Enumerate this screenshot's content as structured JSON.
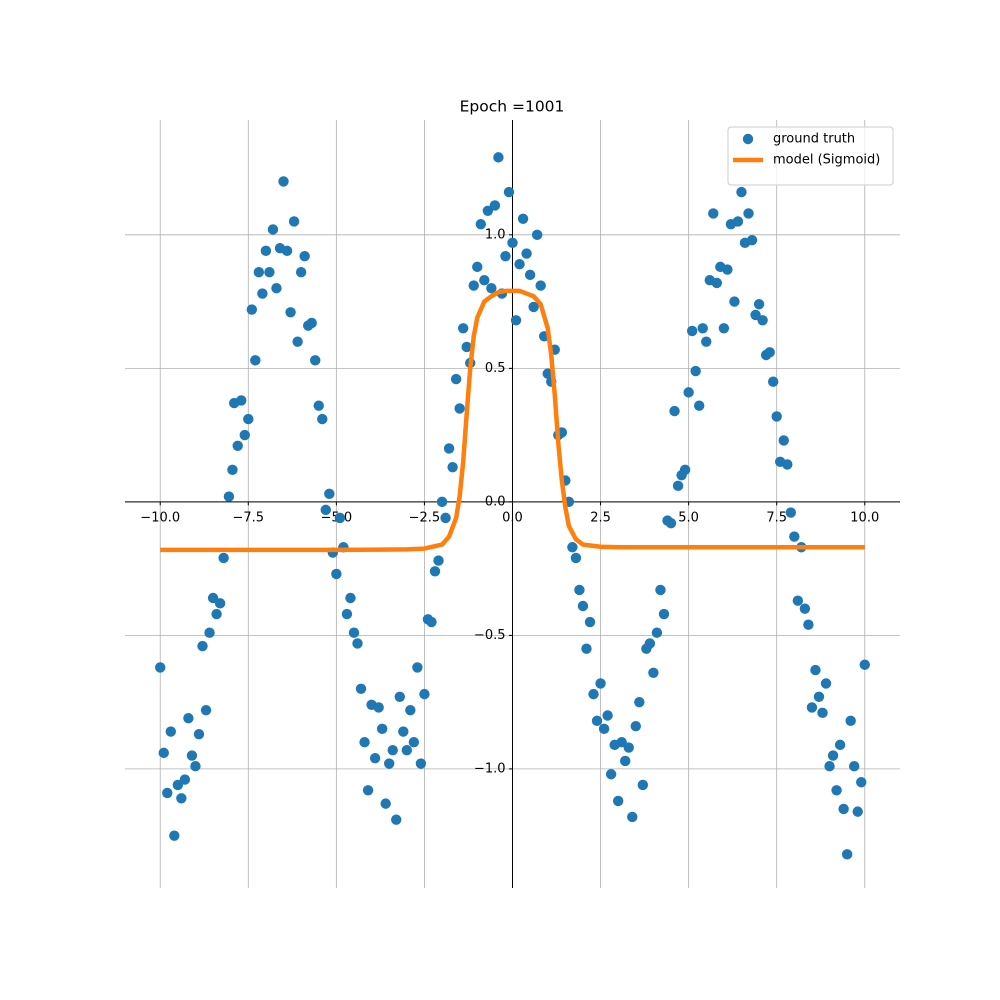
{
  "chart_data": {
    "type": "scatter",
    "title": "Epoch =1001",
    "xlim": [
      -11,
      11
    ],
    "ylim": [
      -1.446,
      1.43
    ],
    "xticks": [
      {
        "value": -10,
        "label": "−10.0"
      },
      {
        "value": -7.5,
        "label": "−7.5"
      },
      {
        "value": -5,
        "label": "−5.0"
      },
      {
        "value": -2.5,
        "label": "−2.5"
      },
      {
        "value": 0,
        "label": "0.0"
      },
      {
        "value": 2.5,
        "label": "2.5"
      },
      {
        "value": 5,
        "label": "5.0"
      },
      {
        "value": 7.5,
        "label": "7.5"
      },
      {
        "value": 10,
        "label": "10.0"
      }
    ],
    "yticks": [
      {
        "value": -1,
        "label": "−1.0"
      },
      {
        "value": -0.5,
        "label": "−0.5"
      },
      {
        "value": 0,
        "label": "0.0"
      },
      {
        "value": 0.5,
        "label": "0.5"
      },
      {
        "value": 1,
        "label": "1.0"
      }
    ],
    "grid": true,
    "legend": "upper right",
    "series": [
      {
        "name": "ground truth",
        "type": "scatter",
        "color": "#1f77b4",
        "x": [
          -10.0,
          -9.9,
          -9.8,
          -9.7,
          -9.6,
          -9.5,
          -9.4,
          -9.3,
          -9.2,
          -9.1,
          -9.0,
          -8.9,
          -8.8,
          -8.7,
          -8.6,
          -8.5,
          -8.4,
          -8.3,
          -8.2,
          -8.05,
          -7.95,
          -7.9,
          -7.8,
          -7.7,
          -7.6,
          -7.5,
          -7.4,
          -7.3,
          -7.2,
          -7.1,
          -7.0,
          -6.9,
          -6.8,
          -6.7,
          -6.6,
          -6.5,
          -6.4,
          -6.3,
          -6.2,
          -6.1,
          -6.0,
          -5.9,
          -5.8,
          -5.7,
          -5.6,
          -5.5,
          -5.4,
          -5.3,
          -5.2,
          -5.1,
          -5.0,
          -4.9,
          -4.8,
          -4.7,
          -4.6,
          -4.5,
          -4.4,
          -4.3,
          -4.2,
          -4.1,
          -4.0,
          -3.9,
          -3.8,
          -3.7,
          -3.6,
          -3.5,
          -3.4,
          -3.3,
          -3.2,
          -3.1,
          -3.0,
          -2.9,
          -2.8,
          -2.7,
          -2.6,
          -2.5,
          -2.4,
          -2.3,
          -2.2,
          -2.1,
          -2.0,
          -1.9,
          -1.8,
          -1.7,
          -1.6,
          -1.5,
          -1.4,
          -1.3,
          -1.2,
          -1.1,
          -1.0,
          -0.9,
          -0.8,
          -0.7,
          -0.6,
          -0.5,
          -0.4,
          -0.3,
          -0.2,
          -0.1,
          0.0,
          0.1,
          0.2,
          0.3,
          0.4,
          0.5,
          0.6,
          0.7,
          0.8,
          0.9,
          1.0,
          1.1,
          1.2,
          1.3,
          1.4,
          1.5,
          1.6,
          1.7,
          1.8,
          1.9,
          2.0,
          2.1,
          2.2,
          2.3,
          2.4,
          2.5,
          2.6,
          2.7,
          2.8,
          2.9,
          3.0,
          3.1,
          3.2,
          3.3,
          3.4,
          3.5,
          3.6,
          3.7,
          3.8,
          3.9,
          4.0,
          4.1,
          4.2,
          4.3,
          4.4,
          4.5,
          4.6,
          4.7,
          4.8,
          4.9,
          5.0,
          5.1,
          5.2,
          5.3,
          5.4,
          5.5,
          5.6,
          5.7,
          5.8,
          5.9,
          6.0,
          6.1,
          6.2,
          6.3,
          6.4,
          6.5,
          6.6,
          6.7,
          6.8,
          6.9,
          7.0,
          7.1,
          7.2,
          7.3,
          7.4,
          7.5,
          7.6,
          7.7,
          7.8,
          7.9,
          8.0,
          8.1,
          8.2,
          8.3,
          8.4,
          8.5,
          8.6,
          8.7,
          8.8,
          8.9,
          9.0,
          9.1,
          9.2,
          9.3,
          9.4,
          9.5,
          9.6,
          9.7,
          9.8,
          9.9,
          10.0
        ],
        "values": [
          -0.62,
          -0.94,
          -1.09,
          -0.86,
          -1.25,
          -1.06,
          -1.11,
          -1.04,
          -0.81,
          -0.95,
          -0.99,
          -0.87,
          -0.54,
          -0.78,
          -0.49,
          -0.36,
          -0.42,
          -0.38,
          -0.21,
          0.02,
          0.12,
          0.37,
          0.21,
          0.38,
          0.25,
          0.31,
          0.72,
          0.53,
          0.86,
          0.78,
          0.94,
          0.86,
          1.02,
          0.8,
          0.95,
          1.2,
          0.94,
          0.71,
          1.05,
          0.6,
          0.86,
          0.92,
          0.66,
          0.67,
          0.53,
          0.36,
          0.31,
          -0.03,
          0.03,
          -0.19,
          -0.27,
          -0.06,
          -0.17,
          -0.42,
          -0.36,
          -0.49,
          -0.53,
          -0.7,
          -0.9,
          -1.08,
          -0.76,
          -0.96,
          -0.77,
          -0.85,
          -1.13,
          -0.98,
          -0.93,
          -1.19,
          -0.73,
          -0.86,
          -0.93,
          -0.78,
          -0.9,
          -0.62,
          -0.98,
          -0.72,
          -0.44,
          -0.45,
          -0.26,
          -0.22,
          0.0,
          -0.06,
          0.2,
          0.13,
          0.46,
          0.35,
          0.65,
          0.58,
          0.52,
          0.81,
          0.88,
          1.04,
          0.83,
          1.09,
          0.8,
          1.11,
          1.29,
          0.78,
          0.92,
          1.16,
          0.97,
          0.68,
          0.89,
          1.06,
          0.93,
          0.85,
          0.73,
          1.0,
          0.81,
          0.62,
          0.48,
          0.45,
          0.57,
          0.25,
          0.26,
          0.08,
          0.0,
          -0.17,
          -0.21,
          -0.33,
          -0.39,
          -0.55,
          -0.45,
          -0.72,
          -0.82,
          -0.68,
          -0.85,
          -0.8,
          -1.02,
          -0.91,
          -1.12,
          -0.9,
          -0.97,
          -0.92,
          -1.18,
          -0.84,
          -0.75,
          -1.06,
          -0.55,
          -0.53,
          -0.64,
          -0.49,
          -0.33,
          -0.42,
          -0.07,
          -0.08,
          0.34,
          0.06,
          0.1,
          0.12,
          0.41,
          0.64,
          0.49,
          0.36,
          0.65,
          0.6,
          0.83,
          1.08,
          0.82,
          0.88,
          0.65,
          0.87,
          1.04,
          0.75,
          1.05,
          1.16,
          0.97,
          1.08,
          0.98,
          0.7,
          0.74,
          0.68,
          0.55,
          0.56,
          0.45,
          0.32,
          0.15,
          0.23,
          0.14,
          -0.04,
          -0.13,
          -0.37,
          -0.17,
          -0.4,
          -0.46,
          -0.77,
          -0.63,
          -0.73,
          -0.79,
          -0.68,
          -0.99,
          -0.95,
          -1.08,
          -0.91,
          -1.15,
          -1.32,
          -0.82,
          -0.99,
          -1.16,
          -1.05,
          -0.61
        ]
      },
      {
        "name": "model (Sigmoid)",
        "type": "line",
        "color": "#ff7f0e",
        "x": [
          -10,
          -5,
          -3,
          -2.5,
          -2,
          -1.8,
          -1.6,
          -1.5,
          -1.4,
          -1.3,
          -1.2,
          -1.1,
          -1.0,
          -0.8,
          -0.6,
          -0.4,
          -0.2,
          0,
          0.2,
          0.4,
          0.6,
          0.8,
          1.0,
          1.1,
          1.2,
          1.3,
          1.4,
          1.5,
          1.6,
          1.8,
          2.0,
          2.5,
          3,
          5,
          10
        ],
        "values": [
          -0.18,
          -0.18,
          -0.178,
          -0.175,
          -0.16,
          -0.13,
          -0.06,
          0.02,
          0.15,
          0.33,
          0.5,
          0.62,
          0.69,
          0.75,
          0.77,
          0.785,
          0.79,
          0.79,
          0.79,
          0.78,
          0.77,
          0.74,
          0.65,
          0.55,
          0.4,
          0.22,
          0.08,
          -0.02,
          -0.09,
          -0.14,
          -0.16,
          -0.168,
          -0.17,
          -0.17,
          -0.17
        ]
      }
    ]
  }
}
